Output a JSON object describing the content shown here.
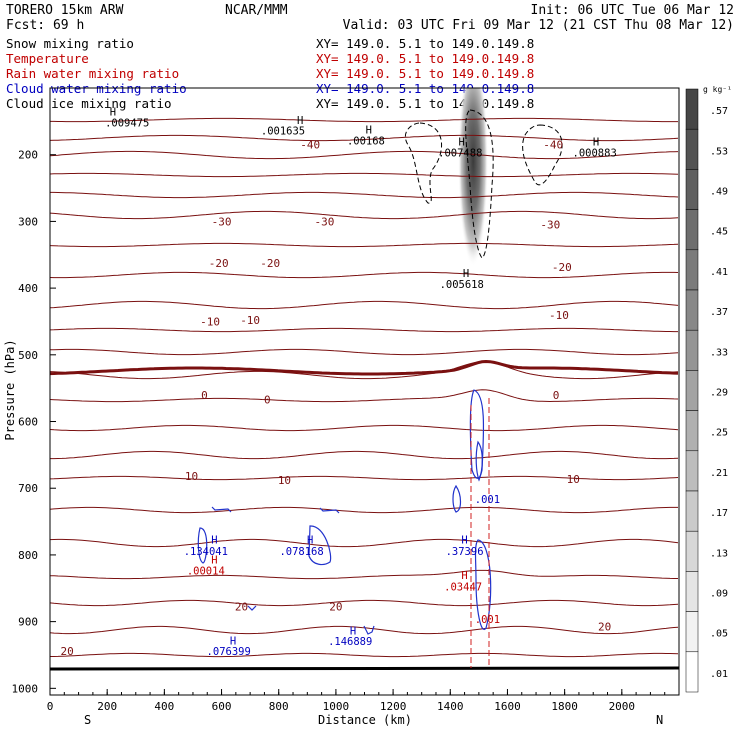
{
  "header": {
    "model": "TORERO  15km ARW",
    "center": "NCAR/MMM",
    "init": "Init: 06 UTC Tue 06 Mar 12",
    "fcst": "Fcst:   69 h",
    "valid": "Valid: 03 UTC Fri 09 Mar 12 (21 CST Thu 08 Mar 12)"
  },
  "legend": [
    {
      "label": "Snow mixing ratio",
      "xy": "XY= 149.0.  5.1 to 149.0.149.8",
      "color": "#000000"
    },
    {
      "label": "Temperature",
      "xy": "XY= 149.0.  5.1 to 149.0.149.8",
      "color": "#c00000"
    },
    {
      "label": "Rain water mixing ratio",
      "xy": "XY= 149.0.  5.1 to 149.0.149.8",
      "color": "#c00000"
    },
    {
      "label": "Cloud water mixing ratio",
      "xy": "XY= 149.0.  5.1 to 149.0.149.8",
      "color": "#0000c0"
    },
    {
      "label": "Cloud ice mixing ratio",
      "xy": "XY= 149.0.  5.1 to 149.0.149.8",
      "color": "#000000"
    }
  ],
  "chart_data": {
    "type": "cross-section",
    "xlabel": "Distance (km)",
    "ylabel": "Pressure (hPa)",
    "xlim": [
      0,
      2200
    ],
    "ylim": [
      1010,
      100
    ],
    "x_ticks": [
      0,
      200,
      400,
      600,
      800,
      1000,
      1200,
      1400,
      1600,
      1800,
      2000
    ],
    "y_ticks": [
      200,
      300,
      400,
      500,
      600,
      700,
      800,
      900,
      1000
    ],
    "left_end": "S",
    "right_end": "N",
    "colorbar": {
      "unit": "g kg⁻¹",
      "labels": [
        ".57",
        ".53",
        ".49",
        ".45",
        ".41",
        ".37",
        ".33",
        ".29",
        ".25",
        ".21",
        ".17",
        ".13",
        ".09",
        ".05",
        ".01"
      ]
    },
    "temperature_labels": [
      {
        "text": "-40",
        "x": 910,
        "p": 185
      },
      {
        "text": "-40",
        "x": 1760,
        "p": 185
      },
      {
        "text": "-30",
        "x": 600,
        "p": 300
      },
      {
        "text": "-30",
        "x": 960,
        "p": 300
      },
      {
        "text": "-30",
        "x": 1750,
        "p": 305
      },
      {
        "text": "-20",
        "x": 590,
        "p": 362
      },
      {
        "text": "-20",
        "x": 770,
        "p": 362
      },
      {
        "text": "-20",
        "x": 1790,
        "p": 368
      },
      {
        "text": "-10",
        "x": 560,
        "p": 450
      },
      {
        "text": "-10",
        "x": 700,
        "p": 448
      },
      {
        "text": "-10",
        "x": 1780,
        "p": 440
      },
      {
        "text": "0",
        "x": 540,
        "p": 560
      },
      {
        "text": "0",
        "x": 760,
        "p": 567
      },
      {
        "text": "0",
        "x": 1770,
        "p": 560
      },
      {
        "text": "10",
        "x": 495,
        "p": 682
      },
      {
        "text": "10",
        "x": 820,
        "p": 688
      },
      {
        "text": "10",
        "x": 1830,
        "p": 686
      },
      {
        "text": "20",
        "x": 670,
        "p": 877
      },
      {
        "text": "20",
        "x": 1000,
        "p": 877
      },
      {
        "text": "20",
        "x": 1940,
        "p": 907
      },
      {
        "text": "20",
        "x": 60,
        "p": 944
      }
    ],
    "maxima_labels": [
      {
        "text": "H",
        "x": 220,
        "p": 135,
        "color": "#000000"
      },
      {
        "text": ".009475",
        "x": 270,
        "p": 152,
        "color": "#000000"
      },
      {
        "text": "H",
        "x": 875,
        "p": 148,
        "color": "#000000"
      },
      {
        "text": ".001635",
        "x": 815,
        "p": 164,
        "color": "#000000"
      },
      {
        "text": "H",
        "x": 1115,
        "p": 162,
        "color": "#000000"
      },
      {
        "text": ".00168",
        "x": 1105,
        "p": 179,
        "color": "#000000"
      },
      {
        "text": "H",
        "x": 1440,
        "p": 180,
        "color": "#000000"
      },
      {
        "text": ".007488",
        "x": 1435,
        "p": 197,
        "color": "#000000"
      },
      {
        "text": "H",
        "x": 1910,
        "p": 180,
        "color": "#000000"
      },
      {
        "text": ".000883",
        "x": 1905,
        "p": 197,
        "color": "#000000"
      },
      {
        "text": "H",
        "x": 1455,
        "p": 377,
        "color": "#000000"
      },
      {
        "text": ".005618",
        "x": 1440,
        "p": 394,
        "color": "#000000"
      },
      {
        "text": "H",
        "x": 575,
        "p": 777,
        "color": "#0000c0"
      },
      {
        "text": ".134041",
        "x": 545,
        "p": 794,
        "color": "#0000c0"
      },
      {
        "text": "H",
        "x": 910,
        "p": 777,
        "color": "#0000c0"
      },
      {
        "text": ".078168",
        "x": 880,
        "p": 794,
        "color": "#0000c0"
      },
      {
        "text": "H",
        "x": 1450,
        "p": 777,
        "color": "#0000c0"
      },
      {
        "text": ".37396",
        "x": 1450,
        "p": 794,
        "color": "#0000c0"
      },
      {
        "text": "H",
        "x": 575,
        "p": 807,
        "color": "#c00000"
      },
      {
        "text": ".00014",
        "x": 545,
        "p": 823,
        "color": "#c00000"
      },
      {
        "text": "H",
        "x": 1450,
        "p": 830,
        "color": "#c00000"
      },
      {
        "text": ".03447",
        "x": 1445,
        "p": 847,
        "color": "#c00000"
      },
      {
        "text": ".001",
        "x": 1530,
        "p": 716,
        "color": "#0000c0"
      },
      {
        "text": ".001",
        "x": 1530,
        "p": 896,
        "color": "#c00000"
      },
      {
        "text": "H",
        "x": 640,
        "p": 928,
        "color": "#0000c0"
      },
      {
        "text": ".076399",
        "x": 625,
        "p": 944,
        "color": "#0000c0"
      },
      {
        "text": "H",
        "x": 1060,
        "p": 913,
        "color": "#0000c0"
      },
      {
        "text": ".146889",
        "x": 1050,
        "p": 929,
        "color": "#0000c0"
      }
    ]
  }
}
